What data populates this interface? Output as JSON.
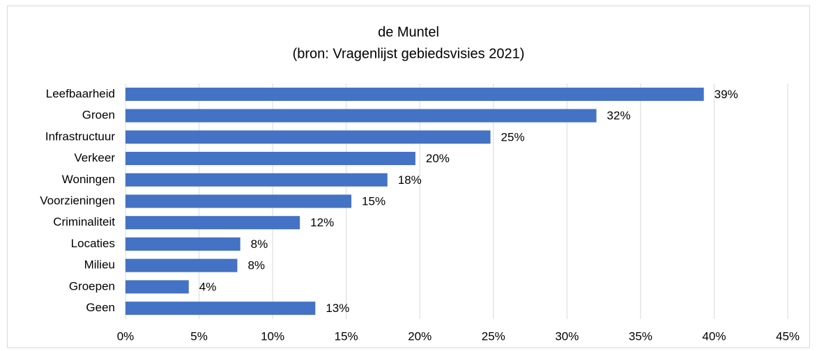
{
  "chart_data": {
    "type": "hbar",
    "title": "de Muntel",
    "subtitle": "(bron: Vragenlijst gebiedsvisies 2021)",
    "categories": [
      "Leefbaarheid",
      "Groen",
      "Infrastructuur",
      "Verkeer",
      "Woningen",
      "Voorzieningen",
      "Criminaliteit",
      "Locaties",
      "Milieu",
      "Groepen",
      "Geen"
    ],
    "values": [
      39.3,
      32.0,
      24.8,
      19.7,
      17.8,
      15.35,
      11.85,
      7.8,
      7.6,
      4.3,
      12.9
    ],
    "value_labels": [
      "39%",
      "32%",
      "25%",
      "20%",
      "18%",
      "15%",
      "12%",
      "8%",
      "8%",
      "4%",
      "13%"
    ],
    "color": "#4472c4",
    "xlim": [
      0,
      45
    ],
    "xticks": [
      {
        "value": 0,
        "label": "0%"
      },
      {
        "value": 5,
        "label": "5%"
      },
      {
        "value": 10,
        "label": "10%"
      },
      {
        "value": 15,
        "label": "15%"
      },
      {
        "value": 20,
        "label": "20%"
      },
      {
        "value": 25,
        "label": "25%"
      },
      {
        "value": 30,
        "label": "30%"
      },
      {
        "value": 35,
        "label": "35%"
      },
      {
        "value": 40,
        "label": "40%"
      },
      {
        "value": 45,
        "label": "45%"
      }
    ],
    "grid": true
  }
}
